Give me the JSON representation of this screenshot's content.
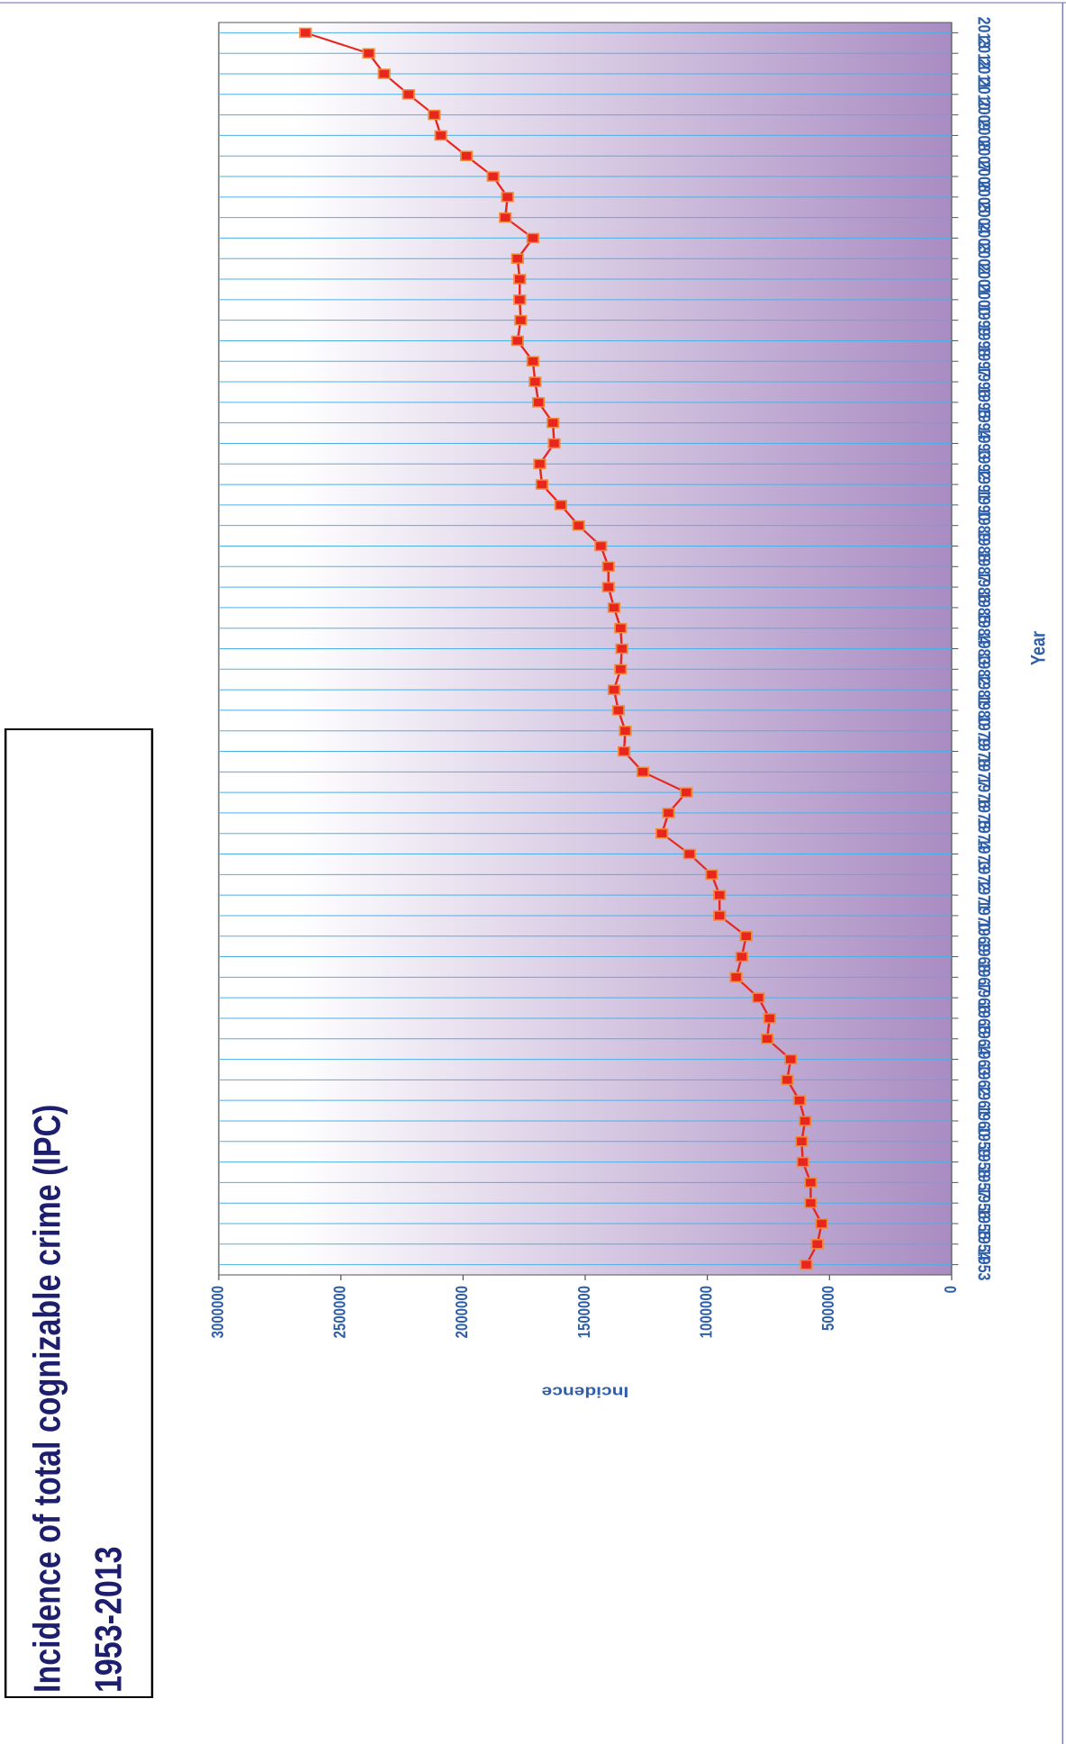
{
  "chart_data": {
    "type": "line",
    "title": "Incidence of total cognizable crime (IPC)",
    "subtitle": "1953-2013",
    "x_label": "Year",
    "y_label": "Incidence",
    "categories": [
      "1953",
      "1954",
      "1955",
      "1956",
      "1957",
      "1958",
      "1959",
      "1960",
      "1961",
      "1962",
      "1963",
      "1964",
      "1965",
      "1966",
      "1967",
      "1968",
      "1969",
      "1970",
      "1971",
      "1972",
      "1973",
      "1974",
      "1975",
      "1976",
      "1977",
      "1978",
      "1979",
      "1980",
      "1981",
      "1982",
      "1983",
      "1984",
      "1985",
      "1986",
      "1987",
      "1988",
      "1989",
      "1990",
      "1991",
      "1992",
      "1993",
      "1994",
      "1995",
      "1996",
      "1997",
      "1998",
      "1999",
      "2000",
      "2001",
      "2002",
      "2003",
      "2004",
      "2005",
      "2006",
      "2007",
      "2008",
      "2009",
      "2010",
      "2011",
      "2012",
      "2013"
    ],
    "series": [
      {
        "name": "Incidence",
        "color": "#e8261e",
        "marker_color": "#e8261e",
        "values": [
          595000,
          550000,
          532000,
          577000,
          577000,
          609000,
          614000,
          600000,
          623000,
          673000,
          659000,
          755000,
          745000,
          791000,
          882000,
          859000,
          841000,
          950000,
          950000,
          982000,
          1073000,
          1186000,
          1159000,
          1086000,
          1264000,
          1341000,
          1336000,
          1364000,
          1382000,
          1355000,
          1350000,
          1355000,
          1382000,
          1405000,
          1405000,
          1436000,
          1527000,
          1600000,
          1677000,
          1686000,
          1627000,
          1632000,
          1691000,
          1705000,
          1714000,
          1777000,
          1764000,
          1768000,
          1768000,
          1777000,
          1714000,
          1827000,
          1818000,
          1877000,
          1986000,
          2091000,
          2118000,
          2223000,
          2323000,
          2386000,
          2645000
        ]
      }
    ],
    "ylim": [
      0,
      3000000
    ],
    "yticks": [
      0,
      500000,
      1000000,
      1500000,
      2000000,
      2500000,
      3000000
    ],
    "grid": true
  }
}
